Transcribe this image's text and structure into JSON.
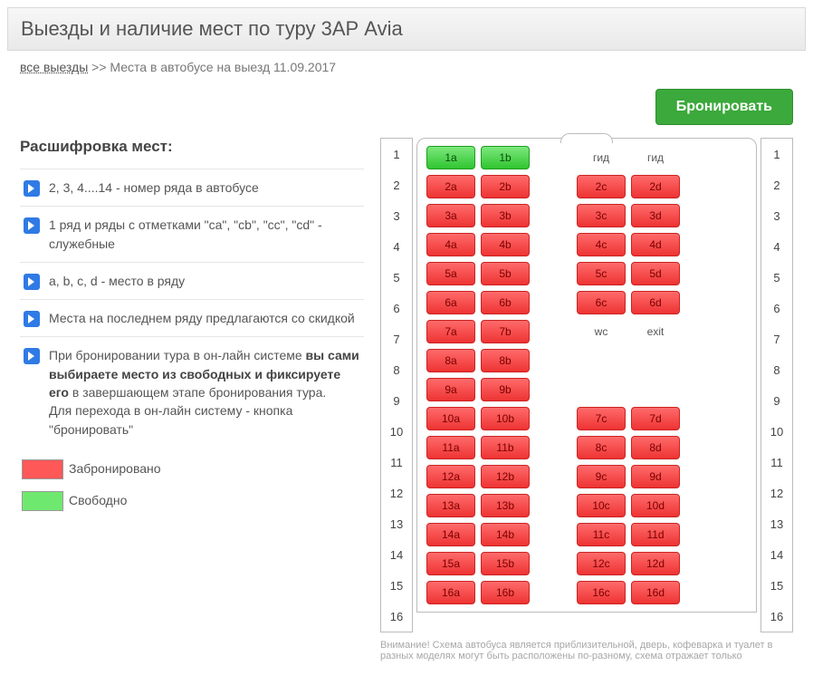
{
  "title": "Выезды и наличие мест по туру 3АР Avia",
  "breadcrumb": {
    "link_text": "все выезды",
    "separator": " >> ",
    "current": "Места в автобусе на выезд 11.09.2017"
  },
  "book_button": "Бронировать",
  "legend_heading": "Расшифровка мест:",
  "legend_items": [
    {
      "text": "2, 3, 4....14 - номер ряда в автобусе"
    },
    {
      "text": "1 ряд и ряды с отметками \"ca\", \"cb\", \"cc\", \"cd\" - служебные"
    },
    {
      "text": "a, b, c, d - место в ряду"
    },
    {
      "text": "Места на последнем ряду предлагаются со скидкой"
    },
    {
      "html": "При бронировании тура в он-лайн системе <b>вы сами выбираете место из свободных и фиксируете его</b> в завершающем этапе бронирования тура.<br>Для перехода в он-лайн систему - кнопка \"бронировать\""
    }
  ],
  "swatches": {
    "booked": {
      "label": "Забронировано",
      "color": "#ff5858"
    },
    "free": {
      "label": "Свободно",
      "color": "#6fe86f"
    }
  },
  "footnote": "Внимание! Схема автобуса является приблизительной, дверь, кофеварка и туалет в разных моделях могут быть расположены по-разному, схема отражает только",
  "colors": {
    "seat_booked_bg_top": "#ff6b6b",
    "seat_booked_bg_bottom": "#e33333",
    "seat_booked_border": "#c22222",
    "seat_free_bg_top": "#7de87d",
    "seat_free_bg_bottom": "#2fc52f",
    "seat_free_border": "#1e9e1e"
  },
  "bus": {
    "row_count": 16,
    "rows": [
      {
        "n": 1,
        "a": {
          "t": "1a",
          "s": "free"
        },
        "b": {
          "t": "1b",
          "s": "free"
        },
        "c": {
          "t": "гид",
          "s": "label"
        },
        "d": {
          "t": "гид",
          "s": "label"
        }
      },
      {
        "n": 2,
        "a": {
          "t": "2a",
          "s": "booked"
        },
        "b": {
          "t": "2b",
          "s": "booked"
        },
        "c": {
          "t": "2c",
          "s": "booked"
        },
        "d": {
          "t": "2d",
          "s": "booked"
        }
      },
      {
        "n": 3,
        "a": {
          "t": "3a",
          "s": "booked"
        },
        "b": {
          "t": "3b",
          "s": "booked"
        },
        "c": {
          "t": "3c",
          "s": "booked"
        },
        "d": {
          "t": "3d",
          "s": "booked"
        }
      },
      {
        "n": 4,
        "a": {
          "t": "4a",
          "s": "booked"
        },
        "b": {
          "t": "4b",
          "s": "booked"
        },
        "c": {
          "t": "4c",
          "s": "booked"
        },
        "d": {
          "t": "4d",
          "s": "booked"
        }
      },
      {
        "n": 5,
        "a": {
          "t": "5a",
          "s": "booked"
        },
        "b": {
          "t": "5b",
          "s": "booked"
        },
        "c": {
          "t": "5c",
          "s": "booked"
        },
        "d": {
          "t": "5d",
          "s": "booked"
        }
      },
      {
        "n": 6,
        "a": {
          "t": "6a",
          "s": "booked"
        },
        "b": {
          "t": "6b",
          "s": "booked"
        },
        "c": {
          "t": "6c",
          "s": "booked"
        },
        "d": {
          "t": "6d",
          "s": "booked"
        }
      },
      {
        "n": 7,
        "a": {
          "t": "7a",
          "s": "booked"
        },
        "b": {
          "t": "7b",
          "s": "booked"
        },
        "c": {
          "t": "wc",
          "s": "label"
        },
        "d": {
          "t": "exit",
          "s": "label"
        }
      },
      {
        "n": 8,
        "a": {
          "t": "8a",
          "s": "booked"
        },
        "b": {
          "t": "8b",
          "s": "booked"
        },
        "c": null,
        "d": null
      },
      {
        "n": 9,
        "a": {
          "t": "9a",
          "s": "booked"
        },
        "b": {
          "t": "9b",
          "s": "booked"
        },
        "c": null,
        "d": null
      },
      {
        "n": 10,
        "a": {
          "t": "10a",
          "s": "booked"
        },
        "b": {
          "t": "10b",
          "s": "booked"
        },
        "c": {
          "t": "7c",
          "s": "booked"
        },
        "d": {
          "t": "7d",
          "s": "booked"
        }
      },
      {
        "n": 11,
        "a": {
          "t": "11a",
          "s": "booked"
        },
        "b": {
          "t": "11b",
          "s": "booked"
        },
        "c": {
          "t": "8c",
          "s": "booked"
        },
        "d": {
          "t": "8d",
          "s": "booked"
        }
      },
      {
        "n": 12,
        "a": {
          "t": "12a",
          "s": "booked"
        },
        "b": {
          "t": "12b",
          "s": "booked"
        },
        "c": {
          "t": "9c",
          "s": "booked"
        },
        "d": {
          "t": "9d",
          "s": "booked"
        }
      },
      {
        "n": 13,
        "a": {
          "t": "13a",
          "s": "booked"
        },
        "b": {
          "t": "13b",
          "s": "booked"
        },
        "c": {
          "t": "10c",
          "s": "booked"
        },
        "d": {
          "t": "10d",
          "s": "booked"
        }
      },
      {
        "n": 14,
        "a": {
          "t": "14a",
          "s": "booked"
        },
        "b": {
          "t": "14b",
          "s": "booked"
        },
        "c": {
          "t": "11c",
          "s": "booked"
        },
        "d": {
          "t": "11d",
          "s": "booked"
        }
      },
      {
        "n": 15,
        "a": {
          "t": "15a",
          "s": "booked"
        },
        "b": {
          "t": "15b",
          "s": "booked"
        },
        "c": {
          "t": "12c",
          "s": "booked"
        },
        "d": {
          "t": "12d",
          "s": "booked"
        }
      },
      {
        "n": 16,
        "a": {
          "t": "16a",
          "s": "booked"
        },
        "b": {
          "t": "16b",
          "s": "booked"
        },
        "c": {
          "t": "16c",
          "s": "booked"
        },
        "d": {
          "t": "16d",
          "s": "booked"
        }
      }
    ]
  }
}
